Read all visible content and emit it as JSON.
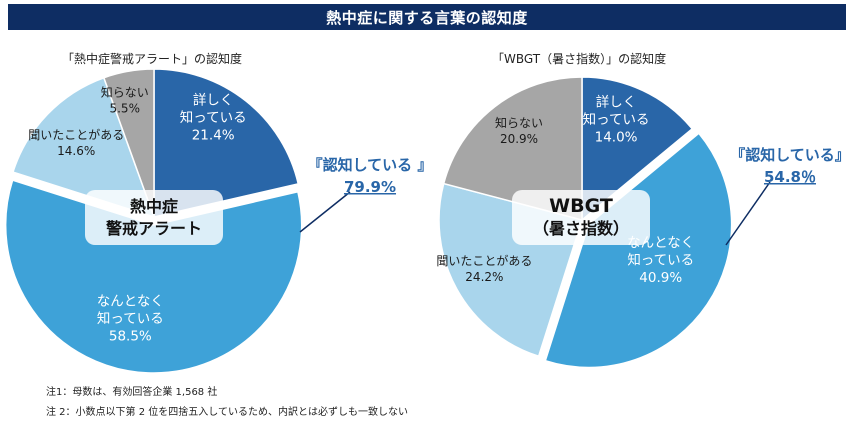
{
  "header": {
    "title": "熱中症に関する言葉の認知度"
  },
  "chart_data": [
    {
      "type": "pie",
      "title": "「熱中症警戒アラート」の認知度",
      "center_label": [
        "熱中症",
        "警戒アラート"
      ],
      "slices": [
        {
          "label": [
            "詳しく",
            "知っている"
          ],
          "value": 21.4,
          "value_text": "21.4%",
          "color": "#2966a8"
        },
        {
          "label": [
            "なんとなく",
            "知っている"
          ],
          "value": 58.5,
          "value_text": "58.5%",
          "color": "#3ea2d8"
        },
        {
          "label": [
            "聞いたことがある"
          ],
          "value": 14.6,
          "value_text": "14.6%",
          "color": "#a9d5ec"
        },
        {
          "label": [
            "知らない"
          ],
          "value": 5.5,
          "value_text": "5.5%",
          "color": "#a6a6a6"
        }
      ],
      "callout": {
        "label": "『認知している 』",
        "value": "79.9%",
        "color": "#2966a8"
      }
    },
    {
      "type": "pie",
      "title": "「WBGT（暑さ指数）」の認知度",
      "center_label": [
        "WBGT",
        "（暑さ指数）"
      ],
      "slices": [
        {
          "label": [
            "詳しく",
            "知っている"
          ],
          "value": 14.0,
          "value_text": "14.0%",
          "color": "#2966a8"
        },
        {
          "label": [
            "なんとなく",
            "知っている"
          ],
          "value": 40.9,
          "value_text": "40.9%",
          "color": "#3ea2d8"
        },
        {
          "label": [
            "聞いたことがある"
          ],
          "value": 24.2,
          "value_text": "24.2%",
          "color": "#a9d5ec"
        },
        {
          "label": [
            "知らない"
          ],
          "value": 20.9,
          "value_text": "20.9%",
          "color": "#a6a6a6"
        }
      ],
      "callout": {
        "label": "『認知している』",
        "value": "54.8％",
        "color": "#2966a8"
      }
    }
  ],
  "notes": [
    "注1：母数は、有効回答企業 1,568 社",
    "注 2：小数点以下第 2 位を四捨五入しているため、内訳とは必ずしも一致しない"
  ]
}
